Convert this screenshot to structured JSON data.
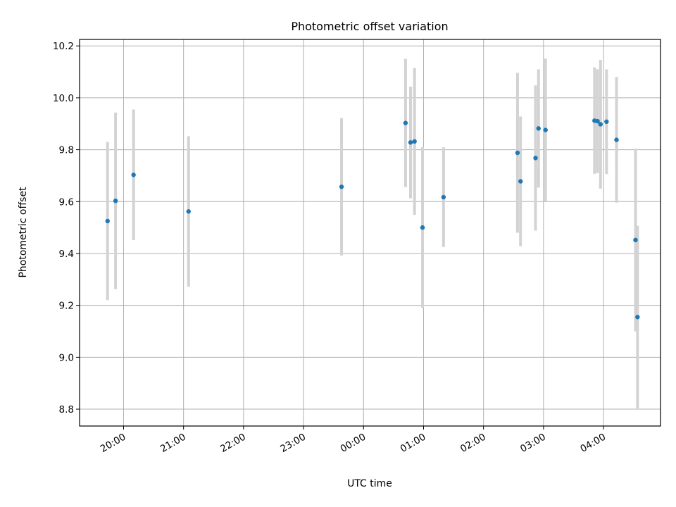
{
  "chart_data": {
    "type": "scatter",
    "title": "Photometric offset variation",
    "xlabel": "UTC time",
    "ylabel": "Photometric offset",
    "x_tick_labels": [
      "20:00",
      "21:00",
      "22:00",
      "23:00",
      "00:00",
      "01:00",
      "02:00",
      "03:00",
      "04:00"
    ],
    "y_ticks": [
      8.8,
      9.0,
      9.2,
      9.4,
      9.6,
      9.8,
      10.0,
      10.2
    ],
    "y_tick_labels": [
      "8.8",
      "9.0",
      "9.2",
      "9.4",
      "9.6",
      "9.8",
      "10.0",
      "10.2"
    ],
    "xlim": [
      "19:16",
      "28:57"
    ],
    "ylim": [
      8.735,
      10.225
    ],
    "grid": true,
    "colors": {
      "points": "#1f77b4",
      "errorbars": "#d3d3d3"
    },
    "points": [
      {
        "t": "19:44",
        "y": 9.525,
        "err": 0.305
      },
      {
        "t": "19:52",
        "y": 9.603,
        "err": 0.34
      },
      {
        "t": "20:10",
        "y": 9.703,
        "err": 0.252
      },
      {
        "t": "21:05",
        "y": 9.562,
        "err": 0.29
      },
      {
        "t": "23:38",
        "y": 9.657,
        "err": 0.265
      },
      {
        "t": "24:42",
        "y": 9.903,
        "err": 0.247
      },
      {
        "t": "24:47",
        "y": 9.828,
        "err": 0.215
      },
      {
        "t": "24:51",
        "y": 9.832,
        "err": 0.283
      },
      {
        "t": "24:59",
        "y": 9.5,
        "err": 0.31
      },
      {
        "t": "25:20",
        "y": 9.617,
        "err": 0.192
      },
      {
        "t": "26:34",
        "y": 9.788,
        "err": 0.308
      },
      {
        "t": "26:37",
        "y": 9.678,
        "err": 0.25
      },
      {
        "t": "26:52",
        "y": 9.768,
        "err": 0.28
      },
      {
        "t": "26:55",
        "y": 9.882,
        "err": 0.228
      },
      {
        "t": "27:02",
        "y": 9.876,
        "err": 0.275
      },
      {
        "t": "27:51",
        "y": 9.912,
        "err": 0.205
      },
      {
        "t": "27:54",
        "y": 9.91,
        "err": 0.2
      },
      {
        "t": "27:57",
        "y": 9.898,
        "err": 0.248
      },
      {
        "t": "28:03",
        "y": 9.908,
        "err": 0.202
      },
      {
        "t": "28:13",
        "y": 9.838,
        "err": 0.242
      },
      {
        "t": "28:32",
        "y": 9.452,
        "err": 0.352
      },
      {
        "t": "28:34",
        "y": 9.155,
        "err": 0.352
      }
    ]
  }
}
